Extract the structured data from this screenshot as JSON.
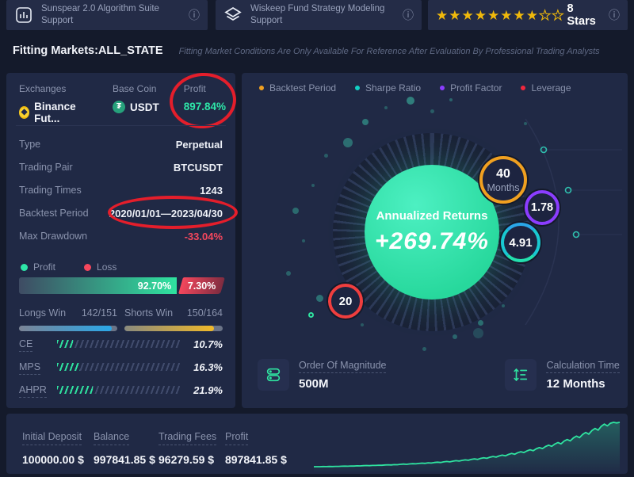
{
  "topbar": {
    "card1": {
      "title": "Sunspear 2.0 Algorithm Suite Support"
    },
    "card2": {
      "title": "Wiskeep Fund Strategy Modeling Support"
    },
    "rating": {
      "filled": 8,
      "total": 10,
      "label": "8 Stars"
    }
  },
  "icons": {
    "info": "ⓘ",
    "star_filled": "★",
    "star_empty": "☆",
    "binance": "◆",
    "usdt": "₮"
  },
  "fitting": {
    "title": "Fitting Markets:ALL_STATE",
    "note": "Fitting Market Conditions Are Only Available For Reference After Evaluation By Professional Trading Analysts"
  },
  "left": {
    "exchanges": {
      "label": "Exchanges",
      "value": "Binance Fut..."
    },
    "base_coin": {
      "label": "Base Coin",
      "value": "USDT"
    },
    "profit": {
      "label": "Profit",
      "value": "897.84%"
    },
    "rows": [
      {
        "label": "Type",
        "value": "Perpetual"
      },
      {
        "label": "Trading Pair",
        "value": "BTCUSDT"
      },
      {
        "label": "Trading Times",
        "value": "1243"
      },
      {
        "label": "Backtest Period",
        "value": "2020/01/01—2023/04/30"
      },
      {
        "label": "Max Drawdown",
        "value": "-33.04%"
      }
    ],
    "legend": {
      "profit": "Profit",
      "loss": "Loss"
    },
    "bar": {
      "profit_text": "92.70%",
      "loss_text": "7.30%",
      "profit_pct": 92.7,
      "loss_pct": 7.3
    },
    "longs": {
      "label": "Longs Win",
      "value": "142/151"
    },
    "shorts": {
      "label": "Shorts Win",
      "value": "150/164"
    },
    "metrics": [
      {
        "label": "CE",
        "value": "10.7%"
      },
      {
        "label": "MPS",
        "value": "16.3%"
      },
      {
        "label": "AHPR",
        "value": "21.9%"
      }
    ]
  },
  "right": {
    "legend": [
      {
        "label": "Backtest Period",
        "color": "#f0a020"
      },
      {
        "label": "Sharpe Ratio",
        "color": "#12cfc4"
      },
      {
        "label": "Profit Factor",
        "color": "#8b3dff"
      },
      {
        "label": "Leverage",
        "color": "#f0273d"
      }
    ],
    "gauge": {
      "title": "Annualized Returns",
      "value": "+269.74%"
    },
    "badges": [
      {
        "name": "backtest-months",
        "value": "40",
        "sub": "Months",
        "color": "#f0a020"
      },
      {
        "name": "profit-factor",
        "value": "1.78",
        "sub": "",
        "color": "#8b3dff"
      },
      {
        "name": "sharpe-ratio",
        "value": "4.91",
        "sub": "",
        "color": "#19c8d1"
      },
      {
        "name": "leverage",
        "value": "20",
        "sub": "",
        "color": "#f03e3e"
      }
    ],
    "info": [
      {
        "label": "Order Of Magnitude",
        "value": "500M",
        "icon": "server-icon"
      },
      {
        "label": "Calculation Time",
        "value": "12 Months",
        "icon": "sort-icon"
      }
    ]
  },
  "bottom": {
    "stats": [
      {
        "label": "Initial Deposit",
        "value": "100000.00 $"
      },
      {
        "label": "Balance",
        "value": "997841.85 $"
      },
      {
        "label": "Trading Fees",
        "value": "96279.59 $"
      },
      {
        "label": "Profit",
        "value": "897841.85 $"
      }
    ]
  },
  "colors": {
    "accent_green": "#2ee6a8",
    "loss_red": "#f5475d",
    "star_gold": "#f0b90b",
    "longs_blue": "#2aa7e8",
    "shorts_gold": "#f0b929",
    "orange": "#f0a020",
    "purple": "#8b3dff",
    "teal": "#19c8d1",
    "leverage_red": "#f03e3e",
    "panel_bg": "#202945",
    "page_bg": "#141a2b",
    "annotation_red": "#e41e2b"
  },
  "chart_data": {
    "type": "line",
    "series": [
      {
        "name": "Balance",
        "values": [
          100000,
          100800,
          100300,
          102500,
          101800,
          104600,
          103900,
          106800,
          106000,
          109200,
          111500,
          110200,
          114000,
          113000,
          117200,
          116000,
          120400,
          123500,
          121300,
          126200,
          125000,
          130400,
          128300,
          134500,
          138200,
          135400,
          142000,
          140000,
          147300,
          152400,
          148300,
          156200,
          161500,
          157400,
          166300,
          172400,
          167300,
          178200,
          173400,
          184300,
          191500,
          185400,
          197300,
          205400,
          198300,
          212400,
          221500,
          213400,
          228300,
          238400,
          229300,
          247200,
          258400,
          248300,
          268400,
          281500,
          270400,
          292300,
          306400,
          294300,
          318400,
          334500,
          320400,
          349300,
          367400,
          352300,
          383400,
          402500,
          386400,
          420300,
          442400,
          424300,
          462400,
          486500,
          466400,
          508300,
          535400,
          512300,
          558400,
          588500,
          562400,
          617300,
          650400,
          622300,
          682400,
          718500,
          688400,
          752300,
          792400,
          758300,
          830400,
          874500,
          838400,
          916300,
          962400,
          925300,
          980400,
          997800,
          985400,
          997841
        ]
      }
    ],
    "line_color": "#2fe3a0",
    "grid": false,
    "legend_position": "none",
    "axes_visible": false
  }
}
